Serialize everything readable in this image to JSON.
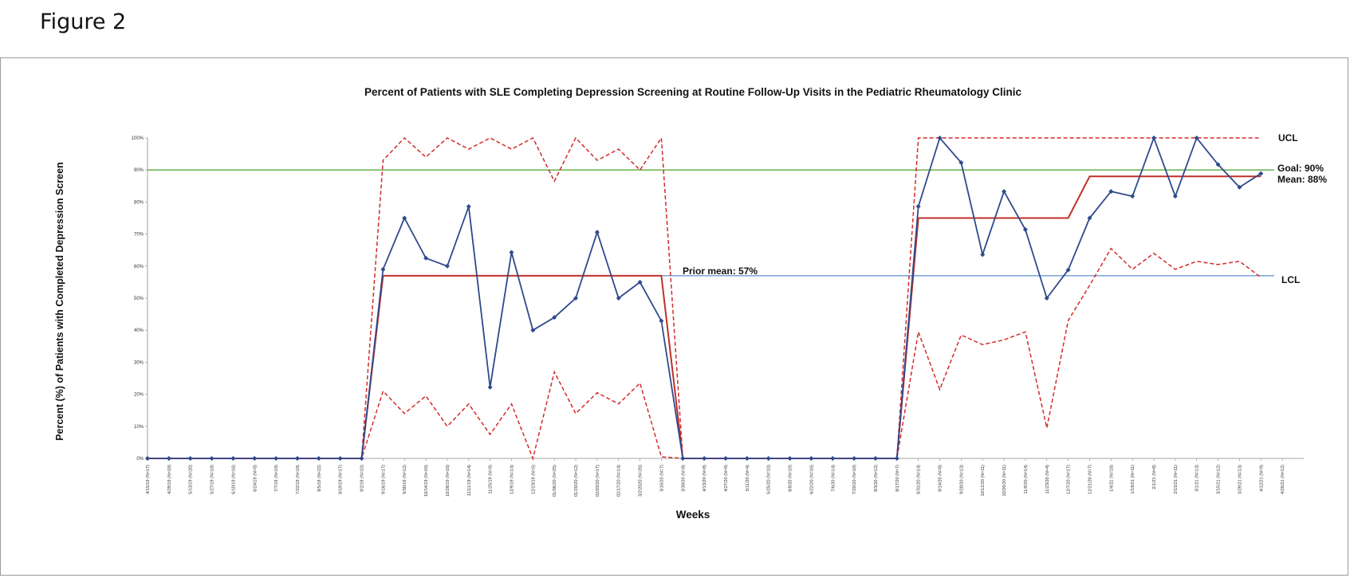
{
  "figure_label": "Figure 2",
  "chart_data": {
    "type": "line",
    "title": "Percent of Patients with SLE Completing Depression Screening at Routine Follow-Up Visits in the Pediatric Rheumatology Clinic",
    "xlabel": "Weeks",
    "ylabel": "Percent (%) of Patients with Completed Depression Screen",
    "ylim": [
      0,
      100
    ],
    "yticks": [
      "0%",
      "10%",
      "20%",
      "30%",
      "40%",
      "50%",
      "60%",
      "70%",
      "80%",
      "90%",
      "100%"
    ],
    "categories": [
      "4/15/19 (N=17)",
      "4/29/19 (N=18)",
      "5/13/19 (N=20)",
      "5/27/19 (N=18)",
      "6/10/19 (N=16)",
      "6/24/19 (N=8)",
      "7/7/19 (N=19)",
      "7/22/19 (N=18)",
      "8/5/19 (N=22)",
      "8/19/19 (N=17)",
      "9/2/19 (N=10)",
      "9/16/19 (N=17)",
      "9/30/19 (N=12)",
      "10/14/19 (N=16)",
      "10/28/19 (N=10)",
      "11/11/19 (N=14)",
      "11/25/19 (N=9)",
      "12/9/19 (N=14)",
      "12/23/19 (N=5)",
      "01/06/20 (N=25)",
      "01/20/20 (N=12)",
      "02/03/20 (N=17)",
      "02/17/20 (N=14)",
      "3/2/2020 (N=20)",
      "3/16/20 (N=7)",
      "3/30/20 (N=8)",
      "4/13/20 (N=8)",
      "4/27/20 (N=9)",
      "5/11/20 (N=4)",
      "5/25/20 (N=10)",
      "6/8/20 (N=10)",
      "6/22/20 (N=16)",
      "7/6/20 (N=14)",
      "7/20/20 (N=10)",
      "8/3/20 (N=12)",
      "8/17/20 (N=7)",
      "8/31/20 (N=14)",
      "9/14/20 (N=8)",
      "9/28/20 (N=13)",
      "10/12/20 (N=11)",
      "10/26/20 (N=11)",
      "11/9/20 (N=14)",
      "11/23/20 (N=4)",
      "12/7/20 (N=17)",
      "12/21/20 (N=7)",
      "1/4/21 (N=18)",
      "1/18/21 (N=11)",
      "2/1/21 (N=8)",
      "2/15/21 (N=11)",
      "3/1/21 (N=13)",
      "3/15/21 (N=12)",
      "3/29/21 (N=13)",
      "4/12/21 (N=9)",
      "4/26/21 (N=12)"
    ],
    "series": [
      {
        "role": "data",
        "color": "#2e4a8c",
        "values": [
          0,
          0,
          0,
          0,
          0,
          0,
          0,
          0,
          0,
          0,
          0,
          59,
          75,
          62.5,
          60,
          78.6,
          22.2,
          64.3,
          40,
          44,
          50,
          70.6,
          50,
          55,
          42.9,
          0,
          0,
          0,
          0,
          0,
          0,
          0,
          0,
          0,
          0,
          0,
          78.6,
          100,
          92.3,
          63.6,
          83.3,
          71.4,
          50,
          58.8,
          75,
          83.3,
          81.8,
          100,
          81.8,
          100,
          91.7,
          84.6,
          88.9,
          null
        ]
      },
      {
        "role": "mean",
        "color": "#c0302a",
        "values": [
          0,
          0,
          0,
          0,
          0,
          0,
          0,
          0,
          0,
          0,
          0,
          57,
          57,
          57,
          57,
          57,
          57,
          57,
          57,
          57,
          57,
          57,
          57,
          57,
          57,
          0,
          0,
          0,
          0,
          0,
          0,
          0,
          0,
          0,
          0,
          0,
          75,
          75,
          75,
          75,
          75,
          75,
          75,
          75,
          88,
          88,
          88,
          88,
          88,
          88,
          88,
          88,
          88,
          null
        ]
      },
      {
        "role": "ucl",
        "color": "#d42a2a",
        "values": [
          0,
          0,
          0,
          0,
          0,
          0,
          0,
          0,
          0,
          0,
          0,
          93,
          100,
          94,
          100,
          96.5,
          100,
          96.5,
          100,
          86.5,
          100,
          93,
          96.5,
          90,
          100,
          0,
          0,
          0,
          0,
          0,
          0,
          0,
          0,
          0,
          0,
          0,
          100,
          100,
          100,
          100,
          100,
          100,
          100,
          100,
          100,
          100,
          100,
          100,
          100,
          100,
          100,
          100,
          100,
          null
        ]
      },
      {
        "role": "lcl",
        "color": "#d42a2a",
        "values": [
          0,
          0,
          0,
          0,
          0,
          0,
          0,
          0,
          0,
          0,
          0,
          21,
          14,
          19.5,
          10,
          17,
          7.5,
          17,
          0,
          27,
          14,
          20.5,
          17,
          23.5,
          0.5,
          0,
          0,
          0,
          0,
          0,
          0,
          0,
          0,
          0,
          0,
          0,
          39.5,
          21.5,
          38.5,
          35.5,
          37,
          39.5,
          9.5,
          43,
          54,
          65.5,
          59,
          64,
          59,
          61.5,
          60.5,
          61.5,
          56.5,
          null
        ]
      }
    ],
    "reference_lines": [
      {
        "name": "Goal",
        "value": 90,
        "color": "#5aaa3c"
      },
      {
        "name": "Prior mean",
        "value": 57,
        "color": "#6b9bd2"
      }
    ],
    "annotations": {
      "ucl": "UCL",
      "goal": "Goal: 90%",
      "mean": "Mean: 88%",
      "lcl": "LCL",
      "prior_mean": "Prior mean: 57%"
    },
    "grid": false
  }
}
